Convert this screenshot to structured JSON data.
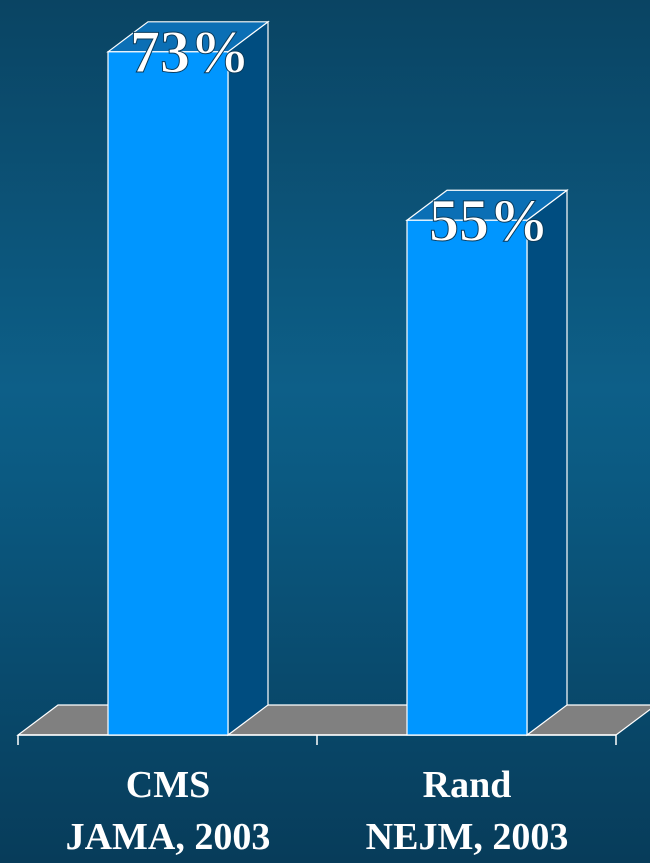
{
  "chart_data": {
    "type": "bar",
    "categories": [
      [
        "CMS",
        "JAMA, 2003"
      ],
      [
        "Rand",
        "NEJM, 2003"
      ]
    ],
    "values": [
      73,
      55
    ],
    "data_labels": [
      "73%",
      "55%"
    ],
    "title": "",
    "xlabel": "",
    "ylabel": "",
    "ylim": [
      0,
      78
    ],
    "grid": false,
    "legend": "none",
    "colors": {
      "bar_front": "#0096ff",
      "bar_side": "#004d80",
      "bar_top": "#0b6fb5",
      "floor": "#808080",
      "text": "#ffffff"
    }
  }
}
